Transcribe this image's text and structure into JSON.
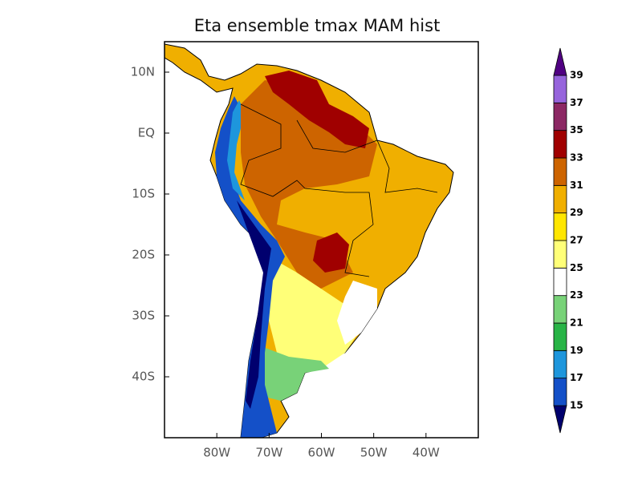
{
  "map": {
    "title": "Eta ensemble tmax MAM hist",
    "xlim": [
      -90,
      -30
    ],
    "ylim": [
      -50,
      15
    ],
    "xticks": [
      {
        "value": -80,
        "label": "80W"
      },
      {
        "value": -70,
        "label": "70W"
      },
      {
        "value": -60,
        "label": "60W"
      },
      {
        "value": -50,
        "label": "50W"
      },
      {
        "value": -40,
        "label": "40W"
      }
    ],
    "yticks": [
      {
        "value": 10,
        "label": "10N"
      },
      {
        "value": 0,
        "label": "EQ"
      },
      {
        "value": -10,
        "label": "10S"
      },
      {
        "value": -20,
        "label": "20S"
      },
      {
        "value": -30,
        "label": "30S"
      },
      {
        "value": -40,
        "label": "40S"
      }
    ],
    "colorbar": {
      "levels": [
        15,
        17,
        19,
        21,
        23,
        25,
        27,
        29,
        31,
        33,
        35,
        37,
        39
      ],
      "colors": [
        "#00006e",
        "#1450c8",
        "#1e96dc",
        "#28b446",
        "#78d278",
        "#ffffff",
        "#ffff78",
        "#ffe600",
        "#f0af00",
        "#cd6400",
        "#a00000",
        "#8c2864",
        "#9664dc",
        "#500082"
      ]
    }
  }
}
